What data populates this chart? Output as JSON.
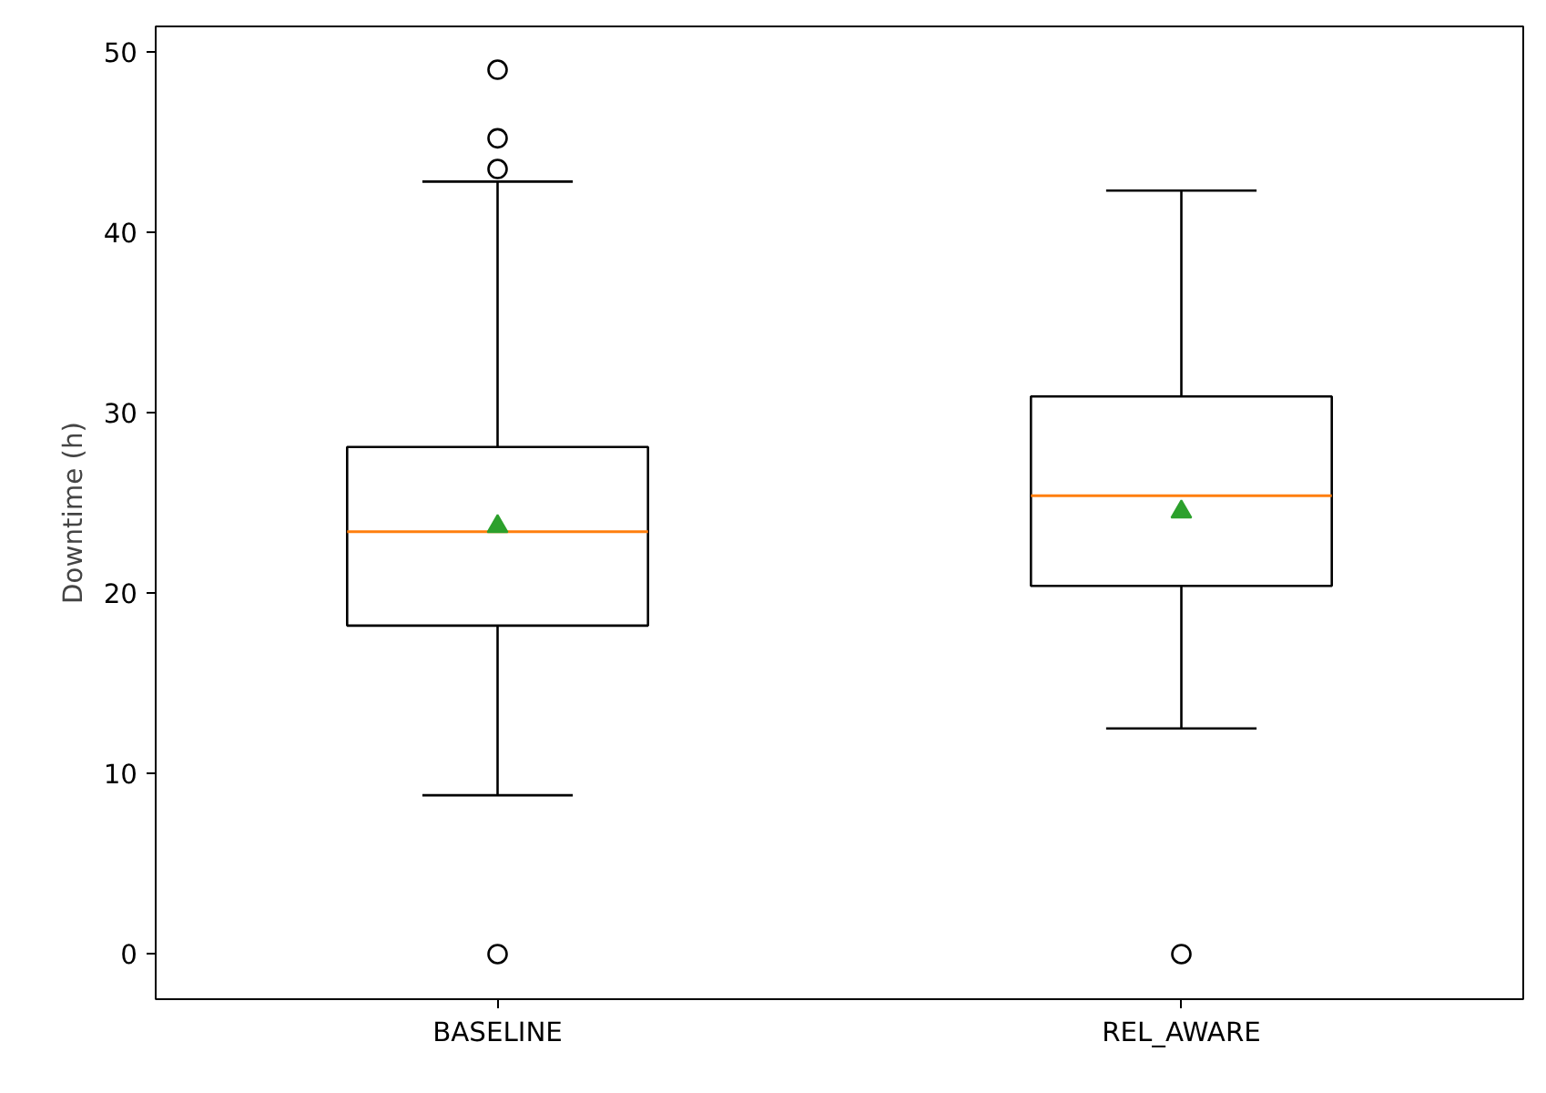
{
  "chart_data": {
    "type": "box",
    "ylabel": "Downtime (h)",
    "categories": [
      "BASELINE",
      "REL_AWARE"
    ],
    "boxes": [
      {
        "low": 8.8,
        "q1": 18.2,
        "median": 23.4,
        "q3": 28.1,
        "high": 42.8,
        "mean": 23.7,
        "outliers": [
          0,
          43.5,
          45.2,
          49.0
        ]
      },
      {
        "low": 12.5,
        "q1": 20.4,
        "median": 25.4,
        "q3": 30.9,
        "high": 42.3,
        "mean": 24.5,
        "outliers": [
          0
        ]
      }
    ],
    "ylim": [
      -2.5,
      51.4
    ],
    "yticks": [
      0,
      10,
      20,
      30,
      40,
      50
    ],
    "grid": false,
    "marker": "circle"
  }
}
